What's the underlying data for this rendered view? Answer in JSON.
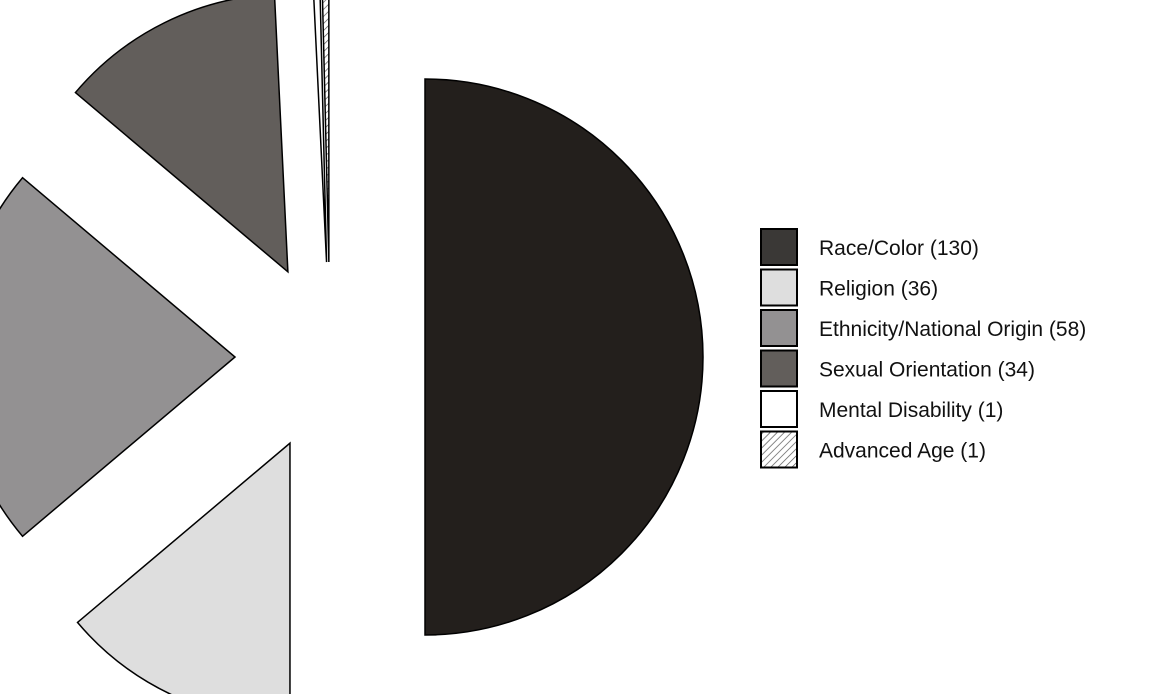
{
  "chart_data": {
    "type": "pie",
    "exploded": true,
    "legend_position": "right",
    "slices": [
      {
        "label": "Race/Color",
        "value": 130,
        "color": "#231f1c",
        "swatch_color": "#3a3836"
      },
      {
        "label": "Religion",
        "value": 36,
        "color": "#dedede",
        "swatch_color": "#dedede"
      },
      {
        "label": "Ethnicity/National Origin",
        "value": 58,
        "color": "#939192",
        "swatch_color": "#939192"
      },
      {
        "label": "Sexual Orientation",
        "value": 34,
        "color": "#625e5b",
        "swatch_color": "#625e5b"
      },
      {
        "label": "Mental Disability",
        "value": 1,
        "color": "#ffffff",
        "swatch_color": "#ffffff"
      },
      {
        "label": "Advanced Age",
        "value": 1,
        "color": "hatch",
        "swatch_color": "hatch"
      }
    ],
    "legend": [
      "Race/Color (130)",
      "Religion (36)",
      "Ethnicity/National Origin (58)",
      "Sexual Orientation (34)",
      "Mental Disability (1)",
      "Advanced Age (1)"
    ]
  }
}
